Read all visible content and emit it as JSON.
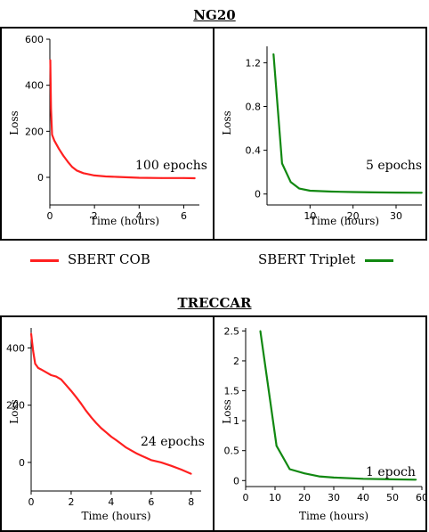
{
  "titles": {
    "ng20": "NG20",
    "treccar": "TRECCAR"
  },
  "legend": [
    {
      "name": "SBERT COB",
      "color": "#ff2020"
    },
    {
      "name": "SBERT Triplet",
      "color": "#118811"
    }
  ],
  "chart_data": [
    {
      "id": "ng20-cob",
      "type": "line",
      "dataset": "NG20",
      "xlabel": "Time (hours)",
      "ylabel": "Loss",
      "xlim": [
        0,
        6.7
      ],
      "ylim": [
        -120,
        600
      ],
      "xticks": [
        0,
        2,
        4,
        6
      ],
      "yticks": [
        0,
        200,
        400,
        600
      ],
      "annotation": "100 epochs",
      "color": "#ff2020",
      "series": [
        {
          "name": "SBERT COB",
          "x": [
            0.02,
            0.05,
            0.1,
            0.2,
            0.4,
            0.6,
            0.8,
            1.0,
            1.2,
            1.5,
            2.0,
            2.5,
            3.0,
            4.0,
            5.0,
            6.0,
            6.5
          ],
          "y": [
            510,
            300,
            185,
            160,
            125,
            95,
            68,
            45,
            30,
            18,
            8,
            4,
            2,
            -2,
            -3,
            -3,
            -4
          ]
        }
      ]
    },
    {
      "id": "ng20-triplet",
      "type": "line",
      "dataset": "NG20",
      "xlabel": "Time (hours)",
      "ylabel": "Loss",
      "xlim": [
        0,
        36
      ],
      "ylim": [
        -0.1,
        1.35
      ],
      "xticks": [
        10,
        20,
        30
      ],
      "yticks": [
        0,
        0.4,
        0.8,
        1.2
      ],
      "annotation": "5 epochs",
      "color": "#118811",
      "series": [
        {
          "name": "SBERT Triplet",
          "x": [
            1.5,
            3.5,
            5.5,
            7.5,
            10,
            15,
            20,
            25,
            30,
            36
          ],
          "y": [
            1.28,
            0.28,
            0.11,
            0.05,
            0.03,
            0.022,
            0.018,
            0.015,
            0.013,
            0.012
          ]
        }
      ]
    },
    {
      "id": "treccar-cob",
      "type": "line",
      "dataset": "TRECCAR",
      "xlabel": "Time (hours)",
      "ylabel": "Loss",
      "xlim": [
        0,
        8.5
      ],
      "ylim": [
        -100,
        470
      ],
      "xticks": [
        0,
        2,
        4,
        6,
        8
      ],
      "yticks": [
        0,
        200,
        400
      ],
      "annotation": "24 epochs",
      "color": "#ff2020",
      "series": [
        {
          "name": "SBERT COB",
          "x": [
            0.0,
            0.1,
            0.2,
            0.35,
            0.5,
            0.75,
            1.0,
            1.25,
            1.5,
            1.75,
            2.0,
            2.25,
            2.5,
            2.75,
            3.0,
            3.25,
            3.5,
            3.75,
            4.0,
            4.25,
            4.5,
            4.75,
            5.0,
            5.25,
            5.5,
            5.75,
            6.0,
            6.5,
            7.0,
            7.5,
            8.0
          ],
          "y": [
            450,
            390,
            345,
            330,
            325,
            315,
            305,
            300,
            290,
            270,
            250,
            228,
            205,
            180,
            158,
            138,
            120,
            105,
            90,
            78,
            65,
            52,
            42,
            32,
            24,
            16,
            8,
            0,
            -12,
            -25,
            -40
          ]
        }
      ]
    },
    {
      "id": "treccar-triplet",
      "type": "line",
      "dataset": "TRECCAR",
      "xlabel": "Time (hours)",
      "ylabel": "Loss",
      "xlim": [
        0,
        60
      ],
      "ylim": [
        -0.1,
        2.55
      ],
      "xticks": [
        0,
        10,
        20,
        30,
        40,
        50,
        60
      ],
      "yticks": [
        0,
        0.5,
        1,
        1.5,
        2,
        2.5
      ],
      "xtick_labels": [
        "0",
        "10",
        "20",
        "30",
        "40",
        "50",
        "60"
      ],
      "ytick_labels": [
        "0",
        "0.5",
        "1",
        "1.5",
        "2",
        "2.5"
      ],
      "annotation": "1 epoch",
      "color": "#118811",
      "series": [
        {
          "name": "SBERT Triplet",
          "x": [
            5,
            10.5,
            15,
            20,
            25,
            30,
            40,
            50,
            58
          ],
          "y": [
            2.5,
            0.58,
            0.19,
            0.12,
            0.07,
            0.05,
            0.03,
            0.02,
            0.015
          ]
        }
      ]
    }
  ]
}
